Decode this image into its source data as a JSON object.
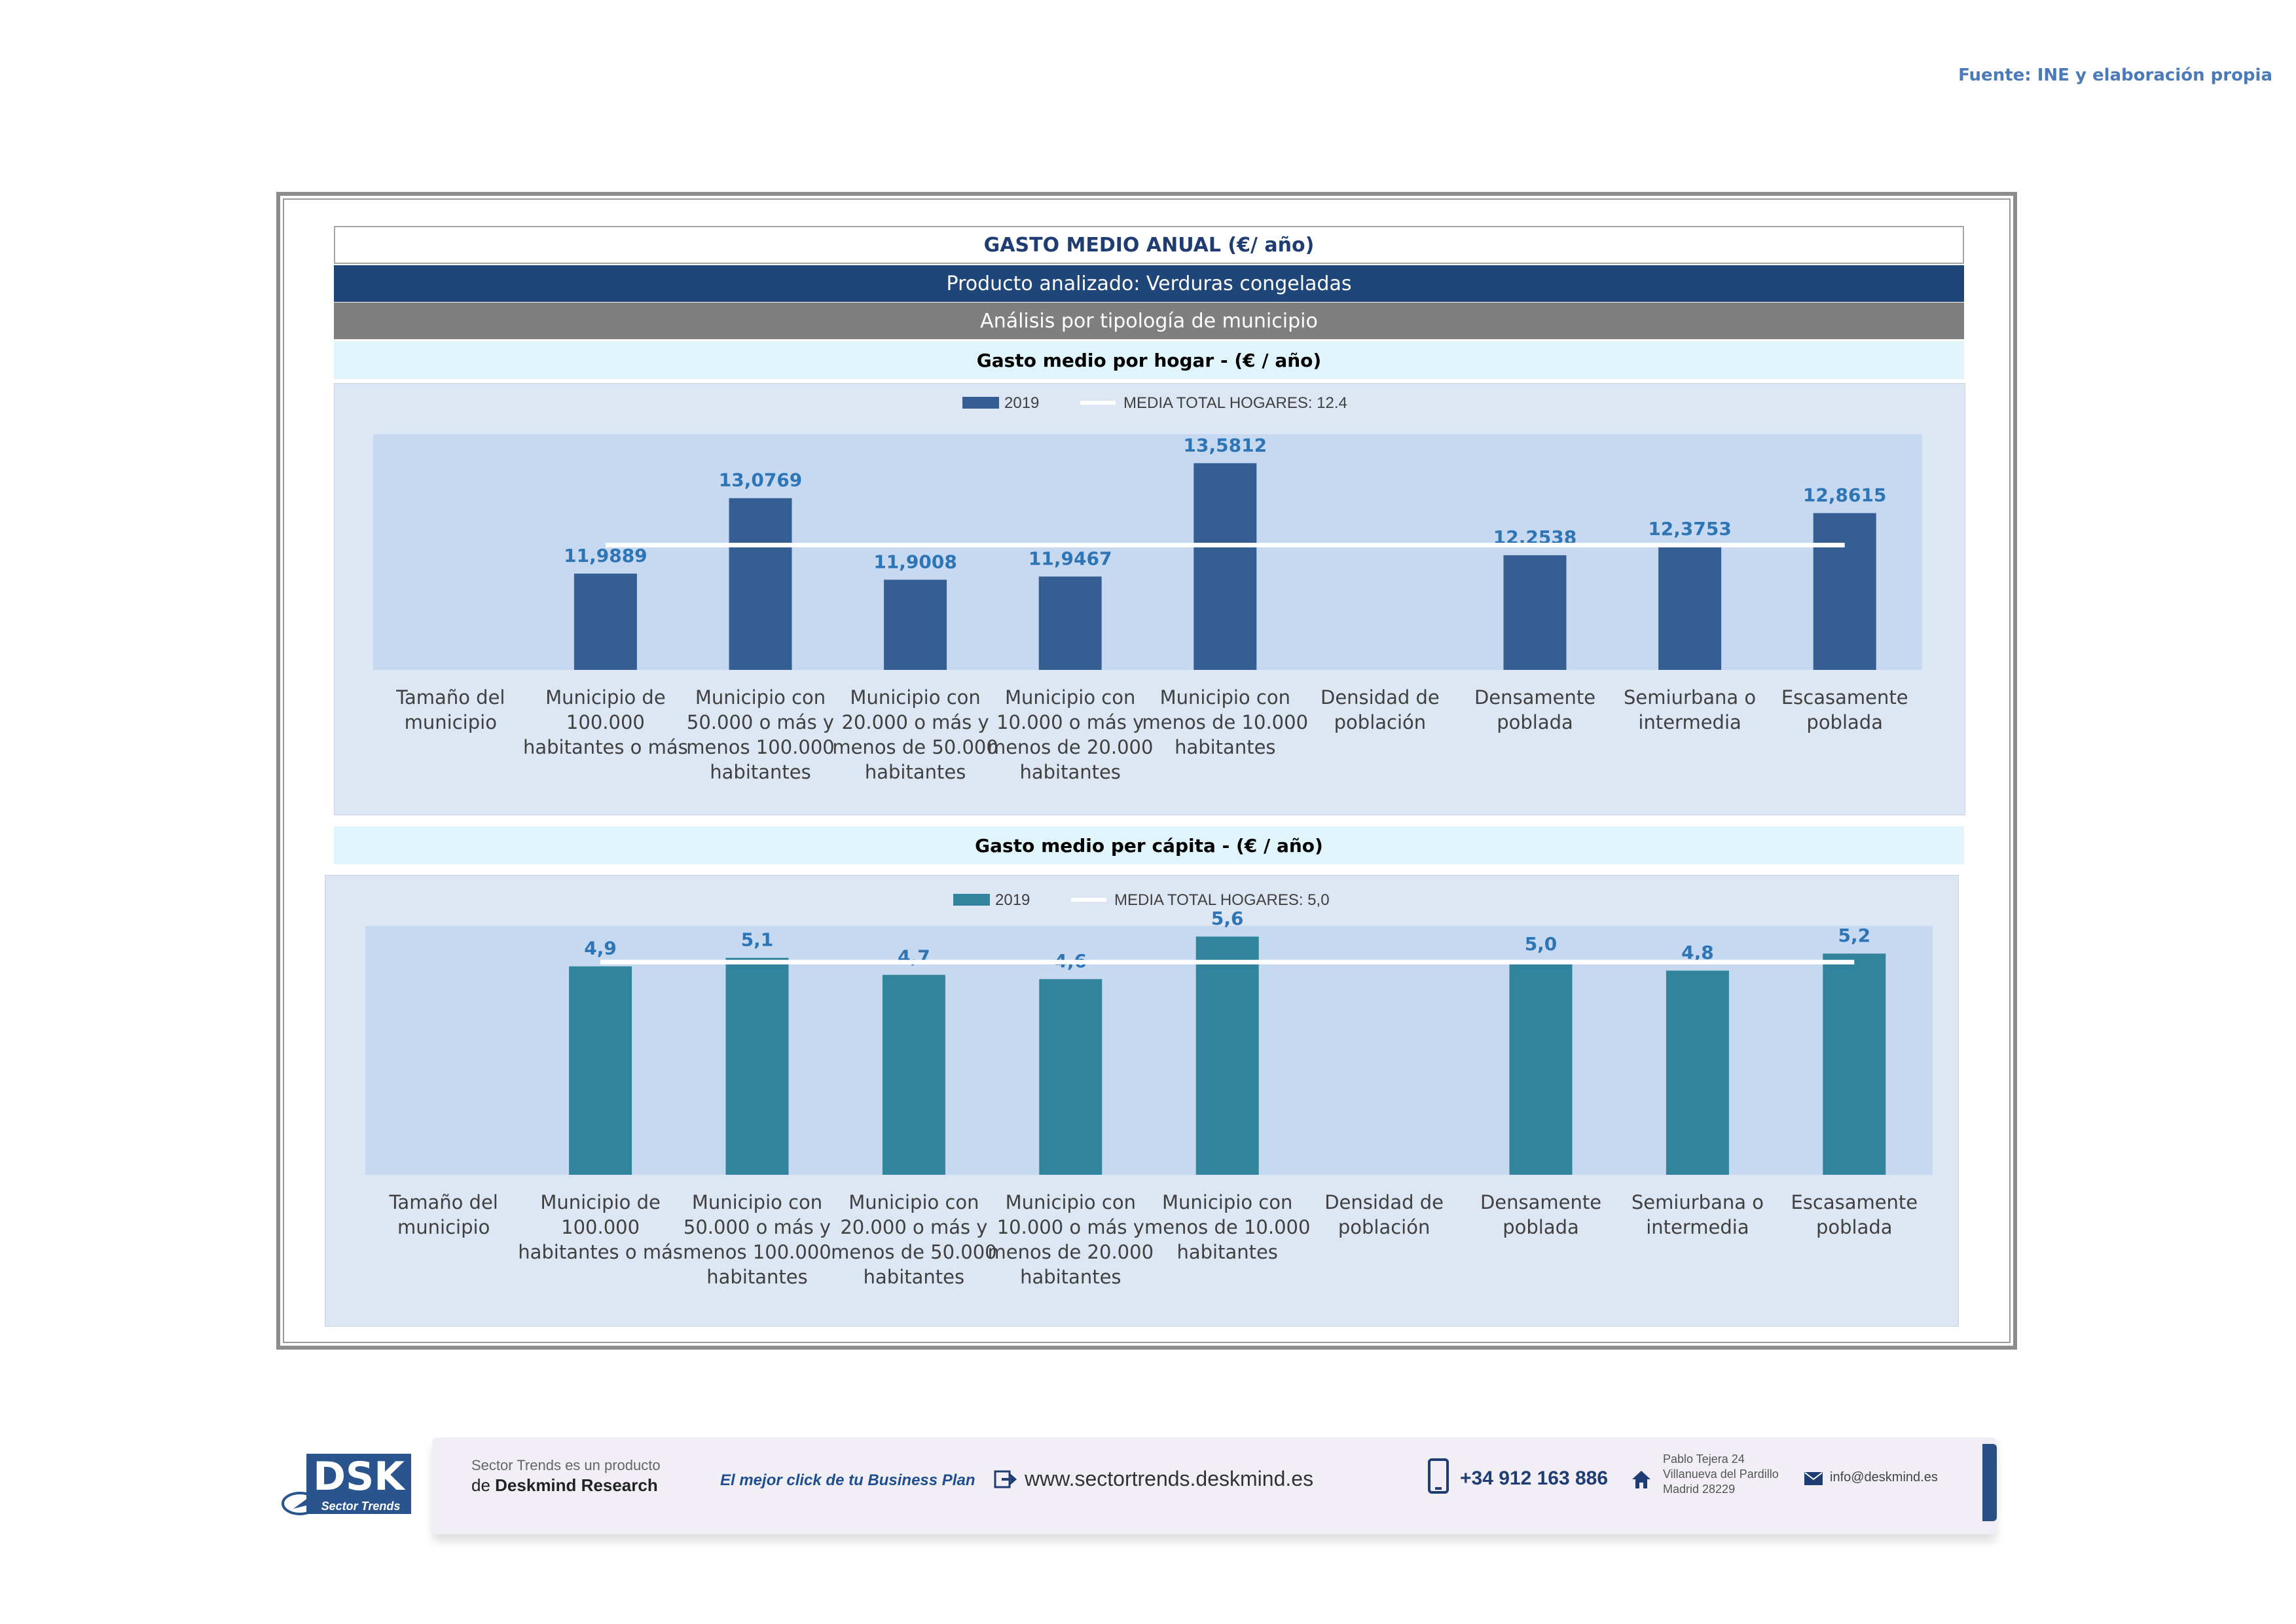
{
  "source": "Fuente: INE y elaboración propia",
  "header": {
    "title": "GASTO MEDIO ANUAL (€/ año)",
    "product": "Producto analizado: Verduras congeladas",
    "analysis": "Análisis por tipología de municipio"
  },
  "colors": {
    "bar_hogar": "#355f93",
    "bar_capita": "#31849b",
    "label": "#2e75b6",
    "panel_outer": "#dde6f3",
    "plot_bg": "#c7d9f0",
    "header_blue": "#1f4678",
    "header_gray": "#7f7f7f"
  },
  "chart_data": [
    {
      "type": "bar",
      "title": "Gasto medio por hogar -  (€ / año)",
      "categories": [
        [
          "Tamaño del",
          "municipio"
        ],
        [
          "Municipio de",
          "100.000",
          "habitantes o más"
        ],
        [
          "Municipio con",
          "50.000 o más y",
          "menos 100.000",
          "habitantes"
        ],
        [
          "Municipio con",
          "20.000 o más y",
          "menos de 50.000",
          "habitantes"
        ],
        [
          "Municipio con",
          "10.000 o más y",
          "menos de 20.000",
          "habitantes"
        ],
        [
          "Municipio con",
          "menos de 10.000",
          "habitantes"
        ],
        [
          "Densidad de",
          "población"
        ],
        [
          "Densamente",
          "poblada"
        ],
        [
          "Semiurbana o",
          "intermedia"
        ],
        [
          "Escasamente",
          "poblada"
        ]
      ],
      "series": [
        {
          "name": "2019",
          "values": [
            null,
            11.9889,
            13.0769,
            11.9008,
            11.9467,
            13.5812,
            null,
            12.2538,
            12.3753,
            12.8615
          ]
        }
      ],
      "value_labels": [
        "",
        "11,9889",
        "13,0769",
        "11,9008",
        "11,9467",
        "13,5812",
        "",
        "12,2538",
        "12,3753",
        "12,8615"
      ],
      "reference_line": {
        "label": "MEDIA TOTAL  HOGARES:",
        "value_text": "12.4",
        "value": 12.4
      },
      "ylim": [
        10.6,
        14.0
      ],
      "legend_position": "top-center"
    },
    {
      "type": "bar",
      "title": "Gasto medio per cápita -  (€ / año)",
      "categories": [
        [
          "Tamaño del",
          "municipio"
        ],
        [
          "Municipio de",
          "100.000",
          "habitantes o más"
        ],
        [
          "Municipio con",
          "50.000 o más y",
          "menos 100.000",
          "habitantes"
        ],
        [
          "Municipio con",
          "20.000 o más y",
          "menos de 50.000",
          "habitantes"
        ],
        [
          "Municipio con",
          "10.000 o más y",
          "menos de 20.000",
          "habitantes"
        ],
        [
          "Municipio con",
          "menos de 10.000",
          "habitantes"
        ],
        [
          "Densidad de",
          "población"
        ],
        [
          "Densamente",
          "poblada"
        ],
        [
          "Semiurbana o",
          "intermedia"
        ],
        [
          "Escasamente",
          "poblada"
        ]
      ],
      "series": [
        {
          "name": "2019",
          "values": [
            null,
            4.9,
            5.1,
            4.7,
            4.6,
            5.6,
            null,
            5.0,
            4.8,
            5.2
          ]
        }
      ],
      "value_labels": [
        "",
        "4,9",
        "5,1",
        "4,7",
        "4,6",
        "5,6",
        "",
        "5,0",
        "4,8",
        "5,2"
      ],
      "reference_line": {
        "label": "MEDIA TOTAL  HOGARES:",
        "value_text": "5,0",
        "value": 5.0
      },
      "ylim": [
        0,
        5.85
      ],
      "legend_position": "top-center"
    }
  ],
  "footer": {
    "logo": "DSK",
    "logo_sub": "Sector Trends",
    "product_line1": "Sector Trends es un producto",
    "product_line2_prefix": "de",
    "product_line2_brand": "Deskmind Research",
    "slogan": "El mejor click de tu Business Plan",
    "website": "www.sectortrends.deskmind.es",
    "phone": "+34 912 163 886",
    "address": [
      "Pablo Tejera 24",
      "Villanueva del Pardillo",
      "Madrid 28229"
    ],
    "email": "info@deskmind.es"
  }
}
